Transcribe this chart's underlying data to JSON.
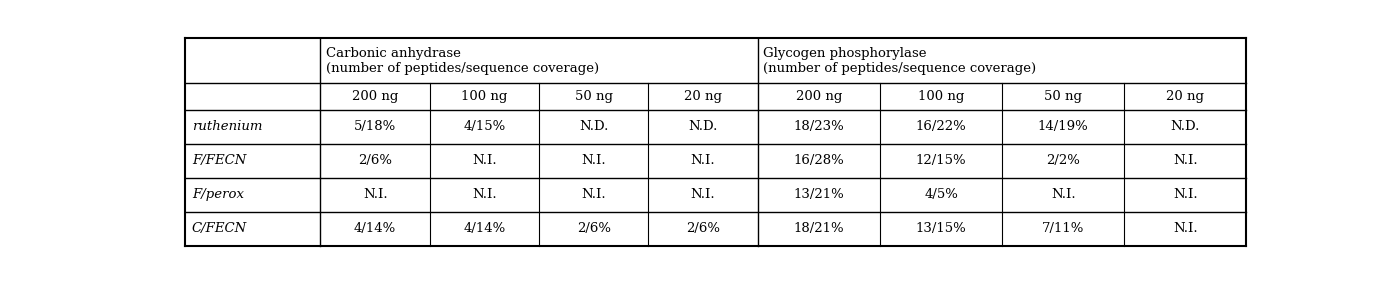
{
  "col_labels_row2": [
    "",
    "200 ng",
    "100 ng",
    "50 ng",
    "20 ng",
    "200 ng",
    "100 ng",
    "50 ng",
    "20 ng"
  ],
  "carbonic_header": "Carbonic anhydrase\n(number of peptides/sequence coverage)",
  "glycogen_header": "Glycogen phosphorylase\n(number of peptides/sequence coverage)",
  "rows": [
    [
      "ruthenium",
      "5/18%",
      "4/15%",
      "N.D.",
      "N.D.",
      "18/23%",
      "16/22%",
      "14/19%",
      "N.D."
    ],
    [
      "F/FECN",
      "2/6%",
      "N.I.",
      "N.I.",
      "N.I.",
      "16/28%",
      "12/15%",
      "2/2%",
      "N.I."
    ],
    [
      "F/perox",
      "N.I.",
      "N.I.",
      "N.I.",
      "N.I.",
      "13/21%",
      "4/5%",
      "N.I.",
      "N.I."
    ],
    [
      "C/FECN",
      "4/14%",
      "4/14%",
      "2/6%",
      "2/6%",
      "18/21%",
      "13/15%",
      "7/11%",
      "N.I."
    ]
  ],
  "background_color": "#ffffff",
  "line_color": "#000000",
  "font_size": 9.5
}
